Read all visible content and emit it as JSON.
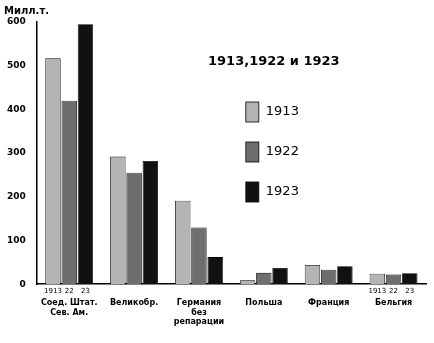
{
  "chart_data": {
    "type": "bar",
    "title": "1913,1922 и 1923",
    "y_label": "Милл.т.",
    "categories": [
      "Соед. Штат. Сев. Ам.",
      "Великобр.",
      "Германия без репарации",
      "Польша",
      "Франция",
      "Бельгия"
    ],
    "series": [
      {
        "name": "1913",
        "color": "#b4b4b4",
        "values": [
          517,
          292,
          191,
          9,
          44,
          24
        ]
      },
      {
        "name": "1922",
        "color": "#6e6e6e",
        "values": [
          420,
          255,
          130,
          26,
          33,
          22
        ]
      },
      {
        "name": "1923",
        "color": "#111111",
        "values": [
          595,
          282,
          62,
          37,
          41,
          25
        ]
      }
    ],
    "annotations": [
      "1913",
      "22",
      "23"
    ],
    "ylim": [
      0,
      600
    ],
    "yticks": [
      0,
      100,
      200,
      300,
      400,
      500,
      600
    ],
    "grid": false,
    "legend": "inside"
  }
}
